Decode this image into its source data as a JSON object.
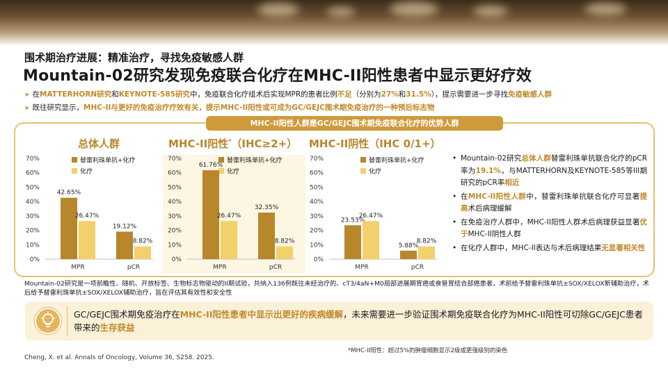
{
  "header": {
    "subtitle": "围术期治疗进展：精准治疗，寻找免疫敏感人群",
    "title": "Mountain-02研究发现免疫联合化疗在MHC-II阳性患者中显示更好疗效"
  },
  "bullets": [
    {
      "parts": [
        {
          "t": "在",
          "gold": false
        },
        {
          "t": "MATTERHORN研究",
          "gold": true
        },
        {
          "t": "和",
          "gold": false
        },
        {
          "t": "KEYNOTE-585研究",
          "gold": true
        },
        {
          "t": "中，免疫联合化疗组术后实现MPR的患者比例",
          "gold": false
        },
        {
          "t": "不足",
          "gold": true
        },
        {
          "t": "（分别为",
          "gold": false
        },
        {
          "t": "27%",
          "gold": true
        },
        {
          "t": "和",
          "gold": false
        },
        {
          "t": "31.5%",
          "gold": true
        },
        {
          "t": "），提示需要进一步寻找",
          "gold": false
        },
        {
          "t": "免疫敏感人群",
          "gold": true
        }
      ]
    },
    {
      "parts": [
        {
          "t": "既往研究显示，",
          "gold": false
        },
        {
          "t": "MHC-II与更好的免疫治疗疗效有关，提示MHC-II阳性或可成为GC/GEJC围术期免疫治疗的一种预后标志物",
          "gold": true
        }
      ]
    }
  ],
  "card_header": "MHC-II阳性人群是GC/GEJC围术期免疫联合化疗的优势人群",
  "colors": {
    "series1": "#b8862b",
    "series2": "#f2d06b",
    "accent": "#c08a2a"
  },
  "legend": {
    "series1": "替雷利珠单抗+化疗",
    "series2": "化疗"
  },
  "charts": [
    {
      "title": "总体人群",
      "title_sup": ""
    },
    {
      "title": "MHC-II阳性",
      "title_sup": "*",
      "title_rest": "（IHC≥2+）"
    },
    {
      "title": "MHC-II阴性（IHC 0/1+）",
      "title_sup": ""
    }
  ],
  "chart_data": [
    {
      "type": "bar",
      "title": "总体人群",
      "categories": [
        "MPR",
        "pCR"
      ],
      "ylim": [
        0,
        70
      ],
      "yticks": [
        "0%",
        "10%",
        "20%",
        "30%",
        "40%",
        "50%",
        "60%",
        "70%"
      ],
      "series": [
        {
          "name": "替雷利珠单抗+化疗",
          "values": [
            42.65,
            19.12
          ],
          "labels": [
            "42.65%",
            "19.12%"
          ]
        },
        {
          "name": "化疗",
          "values": [
            26.47,
            8.82
          ],
          "labels": [
            "26.47%",
            "8.82%"
          ]
        }
      ]
    },
    {
      "type": "bar",
      "title": "MHC-II阳性（IHC≥2+）",
      "categories": [
        "MPR",
        "pCR"
      ],
      "ylim": [
        0,
        70
      ],
      "yticks": [
        "0%",
        "10%",
        "20%",
        "30%",
        "40%",
        "50%",
        "60%",
        "70%"
      ],
      "series": [
        {
          "name": "替雷利珠单抗+化疗",
          "values": [
            61.76,
            32.35
          ],
          "labels": [
            "61.76%",
            "32.35%"
          ]
        },
        {
          "name": "化疗",
          "values": [
            26.47,
            8.82
          ],
          "labels": [
            "26.47%",
            "8.82%"
          ]
        }
      ]
    },
    {
      "type": "bar",
      "title": "MHC-II阴性（IHC 0/1+）",
      "categories": [
        "MPR",
        "pCR"
      ],
      "ylim": [
        0,
        70
      ],
      "yticks": [
        "0%",
        "10%",
        "20%",
        "30%",
        "40%",
        "50%",
        "60%",
        "70%"
      ],
      "series": [
        {
          "name": "替雷利珠单抗+化疗",
          "values": [
            23.53,
            5.88
          ],
          "labels": [
            "23.53%",
            "5.88%"
          ]
        },
        {
          "name": "化疗",
          "values": [
            26.47,
            8.82
          ],
          "labels": [
            "26.47%",
            "8.82%"
          ]
        }
      ]
    }
  ],
  "right_bullets": [
    {
      "parts": [
        {
          "t": "Mountain-02研究",
          "gold": false
        },
        {
          "t": "总体人群",
          "gold": true
        },
        {
          "t": "替雷利珠单抗联合化疗的pCR率为",
          "gold": false
        },
        {
          "t": "19.1%",
          "gold": true
        },
        {
          "t": "，与MATTERHORN及KEYNOTE-585等III期研究的pCR率",
          "gold": false
        },
        {
          "t": "相近",
          "gold": true
        }
      ]
    },
    {
      "parts": [
        {
          "t": "在",
          "gold": false
        },
        {
          "t": "MHC-II阳性人群",
          "gold": true
        },
        {
          "t": "中，替雷利珠单抗联合化疗可显著",
          "gold": false
        },
        {
          "t": "提高",
          "gold": true
        },
        {
          "t": "术后病理缓解",
          "gold": false
        }
      ]
    },
    {
      "parts": [
        {
          "t": "在免疫治疗人群中，MHC-II阳性人群术后病理获益显著",
          "gold": false
        },
        {
          "t": "优于",
          "gold": true
        },
        {
          "t": "MHC-II阴性人群",
          "gold": false
        }
      ]
    },
    {
      "parts": [
        {
          "t": "在化疗人群中，MHC-II表达与术后病理结果",
          "gold": false
        },
        {
          "t": "无显著相关性",
          "gold": true
        }
      ]
    }
  ],
  "study_description": "Mountain-02研究是一项前瞻性、随机、开放标签、生物标志物驱动的II期试验，共纳入136例既往未经治疗的、cT3/4aN+M0局部进展期胃癌或食管胃结合部癌患者，术前给予替雷利珠单抗±SOX/XELOX新辅助治疗，术后给予替雷利珠单抗±SOX/XELOX辅助治疗，旨在评估其有效性和安全性",
  "conclusion": {
    "icon": "lightbulb-icon",
    "parts": [
      {
        "t": "GC/GEJC围术期免疫治疗在",
        "gold": false
      },
      {
        "t": "MHC-II阳性患者中显示出更好的疾病缓解",
        "gold": true
      },
      {
        "t": "，未来需要进一步验证围术期免疫联合化疗为MHC-II阳性可切除GC/GEJC患者带来的",
        "gold": false
      },
      {
        "t": "生存获益",
        "gold": true
      }
    ]
  },
  "footnote": "*MHC-II阳性：超过5%的肿瘤细胞显示2级或更强级别的染色",
  "citation": "Cheng, X. et al. Annals of Oncology, Volume 36, S258. 2025."
}
